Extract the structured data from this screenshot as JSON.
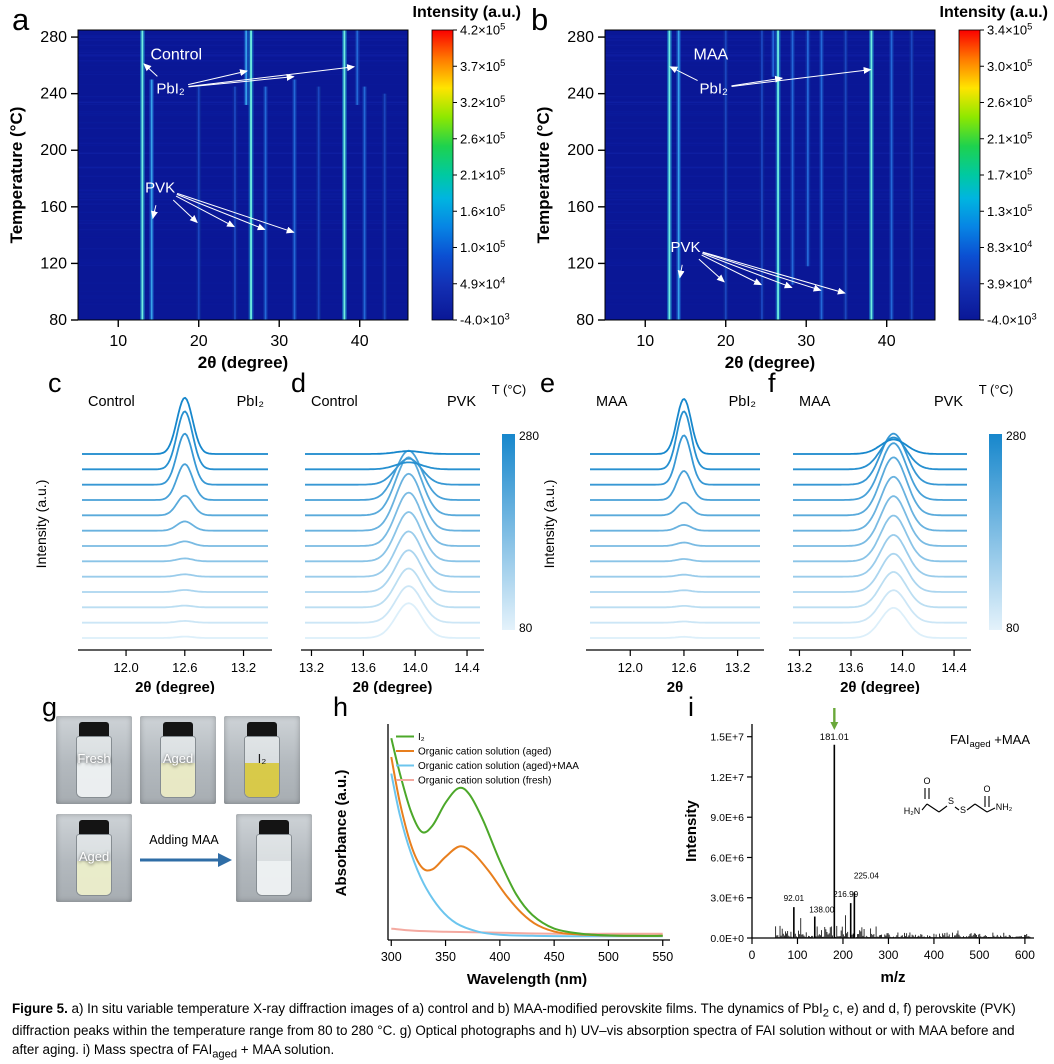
{
  "figure": {
    "caption_label": "Figure 5.",
    "caption_seg1": " a) In situ variable temperature X-ray diffraction images of a) control and b) MAA-modified perovskite films. The dynamics of PbI",
    "caption_sub1": "2",
    "caption_seg2": " c, e) and d, f) perovskite (PVK) diffraction peaks within the temperature range from 80 to 280 °C. g) Optical photographs and h) UV–vis absorption spectra of FAI solution without or with MAA before and after aging. i) Mass spectra of FAI",
    "caption_sub2": "aged",
    "caption_seg3": " + MAA solution."
  },
  "panel_letters": {
    "a": "a",
    "b": "b",
    "c": "c",
    "d": "d",
    "e": "e",
    "f": "f",
    "g": "g",
    "h": "h",
    "i": "i"
  },
  "photos": {
    "row1": [
      {
        "label": "Fresh",
        "liquid": "#edf0f1"
      },
      {
        "label": "Aged",
        "liquid": "#e9e9c2"
      },
      {
        "label": "I₂",
        "liquid": "#d8c83c"
      }
    ],
    "row2_left": {
      "label": "Aged",
      "liquid": "#eaedc8"
    },
    "row2_right": {
      "label": "",
      "liquid": "#eef1f2"
    },
    "arrow_label": "Adding MAA"
  },
  "chart_data": [
    {
      "id": "xrd-map-control",
      "type": "heatmap",
      "panel": "a",
      "annotation_title": {
        "text": "Control",
        "x": 14,
        "y": 264
      },
      "xlabel": "2θ (degree)",
      "ylabel": "Temperature (°C)",
      "xlim": [
        5,
        46
      ],
      "ylim": [
        80,
        285
      ],
      "xticks": [
        10,
        20,
        30,
        40
      ],
      "yticks": [
        80,
        120,
        160,
        200,
        240,
        280
      ],
      "background": "#0a1796",
      "colorbar": {
        "title": "Intensity (a.u.)",
        "ticks": [
          "4.2×10^5",
          "3.7×10^5",
          "3.2×10^5",
          "2.6×10^5",
          "2.1×10^5",
          "1.6×10^5",
          "1.0×10^5",
          "4.9×10^4",
          "-4.0×10^3"
        ]
      },
      "lines": [
        {
          "x": 13.0,
          "t0": 80,
          "t1": 285,
          "i": 1.0
        },
        {
          "x": 14.15,
          "t0": 80,
          "t1": 250,
          "i": 0.55
        },
        {
          "x": 20.0,
          "t0": 80,
          "t1": 245,
          "i": 0.3
        },
        {
          "x": 24.5,
          "t0": 80,
          "t1": 245,
          "i": 0.3
        },
        {
          "x": 25.9,
          "t0": 232,
          "t1": 285,
          "i": 0.55
        },
        {
          "x": 26.5,
          "t0": 80,
          "t1": 285,
          "i": 0.9
        },
        {
          "x": 28.3,
          "t0": 80,
          "t1": 245,
          "i": 0.35
        },
        {
          "x": 31.9,
          "t0": 80,
          "t1": 250,
          "i": 0.45
        },
        {
          "x": 34.9,
          "t0": 80,
          "t1": 245,
          "i": 0.25
        },
        {
          "x": 38.1,
          "t0": 80,
          "t1": 285,
          "i": 0.95
        },
        {
          "x": 39.7,
          "t0": 232,
          "t1": 285,
          "i": 0.4
        },
        {
          "x": 40.6,
          "t0": 80,
          "t1": 245,
          "i": 0.45
        },
        {
          "x": 43.1,
          "t0": 80,
          "t1": 240,
          "i": 0.25
        }
      ],
      "annotations": [
        {
          "text": "PbI₂",
          "x": 16.5,
          "y": 240,
          "arrows": [
            [
              13.2,
              261
            ],
            [
              26.0,
              256
            ],
            [
              31.8,
              252
            ],
            [
              39.3,
              259
            ]
          ]
        },
        {
          "text": "PVK",
          "x": 15.2,
          "y": 170,
          "arrows": [
            [
              14.3,
              152
            ],
            [
              19.8,
              149
            ],
            [
              24.4,
              146
            ],
            [
              28.2,
              144
            ],
            [
              31.8,
              142
            ]
          ]
        }
      ]
    },
    {
      "id": "xrd-map-maa",
      "type": "heatmap",
      "panel": "b",
      "annotation_title": {
        "text": "MAA",
        "x": 16,
        "y": 264
      },
      "xlabel": "2θ (degree)",
      "ylabel": "Temperature (°C)",
      "xlim": [
        5,
        46
      ],
      "ylim": [
        80,
        285
      ],
      "xticks": [
        10,
        20,
        30,
        40
      ],
      "yticks": [
        80,
        120,
        160,
        200,
        240,
        280
      ],
      "background": "#0a1796",
      "colorbar": {
        "title": "Intensity (a.u.)",
        "ticks": [
          "3.4×10^5",
          "3.0×10^5",
          "2.6×10^5",
          "2.1×10^5",
          "1.7×10^5",
          "1.3×10^5",
          "8.3×10^4",
          "3.9×10^4",
          "-4.0×10^3"
        ]
      },
      "lines": [
        {
          "x": 13.0,
          "t0": 80,
          "t1": 285,
          "i": 1.0
        },
        {
          "x": 14.15,
          "t0": 80,
          "t1": 285,
          "i": 0.6
        },
        {
          "x": 20.0,
          "t0": 80,
          "t1": 285,
          "i": 0.3
        },
        {
          "x": 24.5,
          "t0": 80,
          "t1": 285,
          "i": 0.3
        },
        {
          "x": 25.9,
          "t0": 252,
          "t1": 285,
          "i": 0.45
        },
        {
          "x": 26.5,
          "t0": 80,
          "t1": 285,
          "i": 0.9
        },
        {
          "x": 28.3,
          "t0": 105,
          "t1": 285,
          "i": 0.4
        },
        {
          "x": 30.2,
          "t0": 118,
          "t1": 285,
          "i": 0.35
        },
        {
          "x": 31.9,
          "t0": 80,
          "t1": 285,
          "i": 0.5
        },
        {
          "x": 34.9,
          "t0": 80,
          "t1": 285,
          "i": 0.25
        },
        {
          "x": 38.1,
          "t0": 80,
          "t1": 285,
          "i": 0.95
        },
        {
          "x": 40.6,
          "t0": 80,
          "t1": 285,
          "i": 0.45
        },
        {
          "x": 43.1,
          "t0": 80,
          "t1": 285,
          "i": 0.25
        }
      ],
      "annotations": [
        {
          "text": "PbI₂",
          "x": 18.5,
          "y": 240,
          "arrows": [
            [
              13.1,
              259
            ],
            [
              27.0,
              251
            ],
            [
              38.0,
              257
            ]
          ]
        },
        {
          "text": "PVK",
          "x": 15.0,
          "y": 128,
          "arrows": [
            [
              14.3,
              110
            ],
            [
              19.8,
              107
            ],
            [
              24.4,
              105
            ],
            [
              28.2,
              103
            ],
            [
              31.8,
              101
            ],
            [
              34.8,
              99
            ]
          ]
        }
      ]
    },
    {
      "id": "xrd-stack-control-pbi2",
      "type": "line-stack",
      "panel": "c",
      "label_left": "Control",
      "label_right": "PbI₂",
      "xlabel": "2θ (degree)",
      "ylabel": "Intensity (a.u.)",
      "xlim": [
        11.55,
        13.45
      ],
      "xticks": [
        12.0,
        12.6,
        13.2
      ],
      "temperature_range": [
        80,
        280
      ],
      "peak_center": 12.6,
      "peak_sigma": 0.08,
      "amplitudes_bottom_to_top": [
        0.025,
        0.03,
        0.03,
        0.035,
        0.04,
        0.05,
        0.08,
        0.16,
        0.34,
        0.62,
        0.88,
        1.0,
        0.97
      ]
    },
    {
      "id": "xrd-stack-control-pvk",
      "type": "line-stack",
      "panel": "d",
      "label_left": "Control",
      "label_right": "PVK",
      "xlabel": "2θ (degree)",
      "ylabel": null,
      "xlim": [
        13.15,
        14.5
      ],
      "xticks": [
        13.2,
        13.6,
        14.0,
        14.4
      ],
      "temperature_range": [
        80,
        280
      ],
      "peak_center": 13.95,
      "peak_sigma": 0.1,
      "amplitudes_bottom_to_top": [
        0.6,
        0.63,
        0.67,
        0.72,
        0.78,
        0.85,
        0.92,
        0.98,
        1.0,
        0.85,
        0.45,
        0.12,
        0.05
      ],
      "colorbar": {
        "title": "T (°C)",
        "top_label": "280",
        "bottom_label": "80"
      }
    },
    {
      "id": "xrd-stack-maa-pbi2",
      "type": "line-stack",
      "panel": "e",
      "label_left": "MAA",
      "label_right": "PbI₂",
      "xlabel": "2θ",
      "ylabel": "Intensity (a.u.)",
      "xlim": [
        11.55,
        13.45
      ],
      "xticks": [
        12.0,
        12.6,
        13.2
      ],
      "temperature_range": [
        80,
        280
      ],
      "peak_center": 12.6,
      "peak_sigma": 0.08,
      "amplitudes_bottom_to_top": [
        0.02,
        0.02,
        0.025,
        0.03,
        0.035,
        0.04,
        0.06,
        0.1,
        0.22,
        0.5,
        0.85,
        1.0,
        0.95
      ]
    },
    {
      "id": "xrd-stack-maa-pvk",
      "type": "line-stack",
      "panel": "f",
      "label_left": "MAA",
      "label_right": "PVK",
      "xlabel": "2θ (degree)",
      "ylabel": null,
      "xlim": [
        13.15,
        14.5
      ],
      "xticks": [
        13.2,
        13.6,
        14.0,
        14.4
      ],
      "temperature_range": [
        80,
        280
      ],
      "peak_center": 13.93,
      "peak_sigma": 0.1,
      "amplitudes_bottom_to_top": [
        0.52,
        0.56,
        0.61,
        0.66,
        0.72,
        0.79,
        0.86,
        0.93,
        1.0,
        0.98,
        0.88,
        0.55,
        0.25
      ],
      "colorbar": {
        "title": "T (°C)",
        "top_label": "280",
        "bottom_label": "80"
      }
    },
    {
      "id": "uvvis-spectra",
      "type": "line",
      "panel": "h",
      "xlabel": "Wavelength (nm)",
      "ylabel": "Absorbance (a.u.)",
      "xlim": [
        297,
        553
      ],
      "xticks": [
        300,
        350,
        400,
        450,
        500,
        550
      ],
      "series": [
        {
          "name": "I₂",
          "color": "#4ca82a",
          "points": [
            [
              300,
              0.97
            ],
            [
              308,
              0.8
            ],
            [
              318,
              0.62
            ],
            [
              328,
              0.52
            ],
            [
              338,
              0.55
            ],
            [
              350,
              0.66
            ],
            [
              362,
              0.73
            ],
            [
              372,
              0.7
            ],
            [
              385,
              0.57
            ],
            [
              400,
              0.38
            ],
            [
              415,
              0.22
            ],
            [
              430,
              0.12
            ],
            [
              450,
              0.055
            ],
            [
              475,
              0.03
            ],
            [
              500,
              0.022
            ],
            [
              525,
              0.02
            ],
            [
              550,
              0.02
            ]
          ]
        },
        {
          "name": "Organic cation solution (aged)",
          "color": "#e87f1e",
          "points": [
            [
              300,
              0.88
            ],
            [
              308,
              0.66
            ],
            [
              318,
              0.46
            ],
            [
              328,
              0.35
            ],
            [
              338,
              0.34
            ],
            [
              350,
              0.4
            ],
            [
              363,
              0.45
            ],
            [
              375,
              0.42
            ],
            [
              390,
              0.33
            ],
            [
              405,
              0.22
            ],
            [
              420,
              0.13
            ],
            [
              435,
              0.07
            ],
            [
              455,
              0.035
            ],
            [
              480,
              0.025
            ],
            [
              510,
              0.02
            ],
            [
              550,
              0.02
            ]
          ]
        },
        {
          "name": "Organic cation solution (aged)+MAA",
          "color": "#6cc5ee",
          "points": [
            [
              300,
              0.8
            ],
            [
              308,
              0.6
            ],
            [
              318,
              0.42
            ],
            [
              330,
              0.27
            ],
            [
              345,
              0.15
            ],
            [
              360,
              0.08
            ],
            [
              380,
              0.04
            ],
            [
              400,
              0.025
            ],
            [
              430,
              0.02
            ],
            [
              470,
              0.018
            ],
            [
              510,
              0.018
            ],
            [
              550,
              0.018
            ]
          ]
        },
        {
          "name": "Organic cation solution (fresh)",
          "color": "#f4a9a0",
          "points": [
            [
              300,
              0.055
            ],
            [
              320,
              0.045
            ],
            [
              350,
              0.04
            ],
            [
              400,
              0.035
            ],
            [
              450,
              0.03
            ],
            [
              500,
              0.03
            ],
            [
              550,
              0.03
            ]
          ]
        }
      ]
    },
    {
      "id": "mass-spectrum",
      "type": "stem",
      "panel": "i",
      "annotation_main": "FAI",
      "annotation_sub": "aged",
      "annotation_tail": " +MAA",
      "xlabel": "m/z",
      "ylabel": "Intensity",
      "xlim": [
        0,
        620
      ],
      "xticks": [
        0,
        100,
        200,
        300,
        400,
        500,
        600
      ],
      "ylim": [
        0,
        15500000
      ],
      "yticks": [
        "0.0E+0",
        "3.0E+6",
        "6.0E+6",
        "9.0E+6",
        "1.2E+7",
        "1.5E+7"
      ],
      "arrow_color": "#6aa83a",
      "peaks": [
        {
          "mz": 92.01,
          "i": 2300000,
          "label": "92.01"
        },
        {
          "mz": 138.0,
          "i": 1600000,
          "label": "138.00"
        },
        {
          "mz": 181.01,
          "i": 14400000,
          "label": "181.01",
          "arrow": true
        },
        {
          "mz": 216.99,
          "i": 2600000,
          "label": "216.99"
        },
        {
          "mz": 225.04,
          "i": 3400000,
          "label": "225.04"
        }
      ]
    }
  ]
}
